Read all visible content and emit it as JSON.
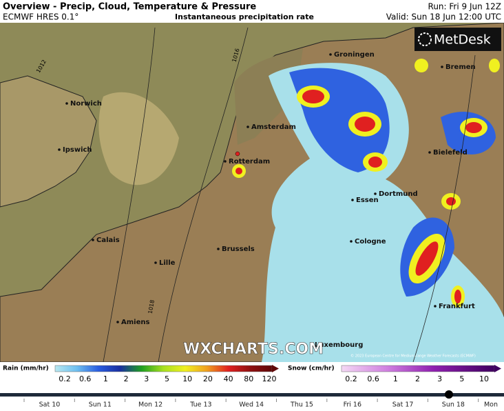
{
  "header": {
    "title": "Overview - Precip, Cloud, Temperature & Pressure",
    "model": "ECMWF HRES 0.1°",
    "subtitle": "Instantaneous precipitation rate",
    "run": "Run: Fri 9 Jun 12Z",
    "valid": "Valid: Sun 18 Jun 12:00 UTC"
  },
  "logo": "MetDesk",
  "watermark": "WXCHARTS.COM",
  "copyright": "© 2023 European Centre for Medium-range Weather Forecasts (ECMWF)",
  "cities": [
    "Groningen",
    "Bremen",
    "Norwich",
    "Amsterdam",
    "Ipswich",
    "Bielefeld",
    "Rotterdam",
    "Dortmund",
    "Essen",
    "Calais",
    "Cologne",
    "Brussels",
    "Lille",
    "Frankfurt",
    "Amiens",
    "Luxembourg"
  ],
  "isobars": [
    "1012",
    "1016",
    "1018"
  ],
  "legend": {
    "rain": {
      "title": "Rain (mm/hr)",
      "labels": [
        0.2,
        0.6,
        1,
        2,
        3,
        5,
        10,
        20,
        40,
        80,
        120
      ]
    },
    "snow": {
      "title": "Snow (cm/hr)",
      "labels": [
        0.2,
        0.6,
        1,
        2,
        3,
        5,
        10
      ]
    }
  },
  "timeline": [
    "Sat 10",
    "Sun 11",
    "Mon 12",
    "Tue 13",
    "Wed 14",
    "Thu 15",
    "Fri 16",
    "Sat 17",
    "Sun 18",
    "Mon"
  ]
}
